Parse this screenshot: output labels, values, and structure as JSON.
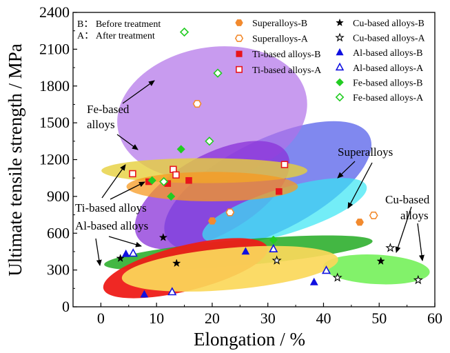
{
  "chart_data": {
    "type": "scatter",
    "xlabel": "Elongation / %",
    "ylabel": "Ultimate tensile strength / MPa",
    "xlim": [
      -5,
      60
    ],
    "ylim": [
      0,
      2400
    ],
    "xticks": [
      0,
      10,
      20,
      30,
      40,
      50,
      60
    ],
    "yticks": [
      0,
      300,
      600,
      900,
      1200,
      1500,
      1800,
      2100,
      2400
    ],
    "notes": [
      "B： Before treatment",
      "A： After treatment"
    ],
    "series": [
      {
        "name": "Superalloys-B",
        "marker": "hexagon",
        "filled": true,
        "color": "#f28a2e",
        "points": [
          [
            20,
            700
          ],
          [
            46.5,
            690
          ]
        ]
      },
      {
        "name": "Superalloys-A",
        "marker": "hexagon",
        "filled": false,
        "color": "#f28a2e",
        "points": [
          [
            17.3,
            1655
          ],
          [
            23.2,
            770
          ],
          [
            49,
            745
          ]
        ]
      },
      {
        "name": "Ti-based alloys-B",
        "marker": "square",
        "filled": true,
        "color": "#e8141b",
        "points": [
          [
            8.6,
            1020
          ],
          [
            12,
            1005
          ],
          [
            15.8,
            1030
          ],
          [
            32,
            940
          ]
        ]
      },
      {
        "name": "Ti-based alloys-A",
        "marker": "square",
        "filled": false,
        "color": "#e8141b",
        "points": [
          [
            5.7,
            1085
          ],
          [
            13,
            1120
          ],
          [
            13.5,
            1075
          ],
          [
            33,
            1160
          ]
        ]
      },
      {
        "name": "Cu-based alloys-B",
        "marker": "star",
        "filled": true,
        "color": "#000000",
        "points": [
          [
            3.5,
            395
          ],
          [
            11.2,
            565
          ],
          [
            13.6,
            355
          ],
          [
            50.3,
            372
          ]
        ]
      },
      {
        "name": "Cu-based alloys-A",
        "marker": "star",
        "filled": false,
        "color": "#000000",
        "points": [
          [
            31.6,
            378
          ],
          [
            42.5,
            238
          ],
          [
            52,
            480
          ],
          [
            57,
            218
          ]
        ]
      },
      {
        "name": "Al-based alloys-B",
        "marker": "triangle",
        "filled": true,
        "color": "#1010e0",
        "points": [
          [
            4.5,
            430
          ],
          [
            7.8,
            100
          ],
          [
            26,
            450
          ],
          [
            38.3,
            200
          ]
        ]
      },
      {
        "name": "Al-based alloys-A",
        "marker": "triangle",
        "filled": false,
        "color": "#1010e0",
        "points": [
          [
            5.8,
            435
          ],
          [
            12.8,
            120
          ],
          [
            31,
            470
          ],
          [
            40.5,
            295
          ]
        ]
      },
      {
        "name": "Fe-based alloys-B",
        "marker": "diamond",
        "filled": true,
        "color": "#22cc22",
        "points": [
          [
            9.2,
            1030
          ],
          [
            12.6,
            900
          ],
          [
            14.4,
            1285
          ],
          [
            31,
            545
          ]
        ]
      },
      {
        "name": "Fe-based alloys-A",
        "marker": "diamond",
        "filled": false,
        "color": "#22cc22",
        "points": [
          [
            11.3,
            1020
          ],
          [
            15,
            2240
          ],
          [
            19.5,
            1350
          ],
          [
            21,
            1905
          ]
        ]
      }
    ],
    "regions": [
      {
        "name": "Superalloys",
        "cx": 30,
        "cy": 980,
        "rx": 20.4,
        "ry": 375,
        "rotation": -26.6,
        "color": "#4a55e8",
        "opacity": 0.7
      },
      {
        "name": "Fe-based alloys",
        "cx": 20,
        "cy": 1580,
        "rx": 17.2,
        "ry": 535,
        "rotation": -10,
        "color": "#b070e8",
        "opacity": 0.7
      },
      {
        "name": "Fe-based alloys",
        "cx": 20,
        "cy": 910,
        "rx": 15.4,
        "ry": 325,
        "rotation": -29,
        "color": "#8a32d8",
        "opacity": 0.75
      },
      {
        "name": "Superalloys",
        "cx": 33,
        "cy": 780,
        "rx": 15.4,
        "ry": 185,
        "rotation": -17,
        "color": "#38e6f4",
        "opacity": 0.7
      },
      {
        "name": "Ti-based alloys",
        "cx": 18.6,
        "cy": 1110,
        "rx": 18.5,
        "ry": 102,
        "rotation": 0,
        "color": "#e6cf3c",
        "opacity": 0.8
      },
      {
        "name": "Ti-based alloys",
        "cx": 20,
        "cy": 980,
        "rx": 15.4,
        "ry": 120,
        "rotation": 0,
        "color": "#f79a22",
        "opacity": 0.75
      },
      {
        "name": "Cu-based alloys",
        "cx": 49.5,
        "cy": 305,
        "rx": 9.6,
        "ry": 120,
        "rotation": 3,
        "color": "#58ee38",
        "opacity": 0.75
      },
      {
        "name": "Cu-based alloys",
        "cx": 24.7,
        "cy": 440,
        "rx": 24.2,
        "ry": 105,
        "rotation": -5,
        "color": "#22aa22",
        "opacity": 0.85
      },
      {
        "name": "Al-based alloys",
        "cx": 15.2,
        "cy": 315,
        "rx": 15.2,
        "ry": 185,
        "rotation": -14,
        "color": "#ee1c18",
        "opacity": 0.95
      },
      {
        "name": "Al-based alloys",
        "cx": 23.2,
        "cy": 310,
        "rx": 19.5,
        "ry": 170,
        "rotation": -5,
        "color": "#fbd85a",
        "opacity": 0.92
      }
    ],
    "annotations": [
      {
        "text": "Fe-based",
        "text2": "alloys"
      },
      {
        "text": "Superalloys"
      },
      {
        "text": "Cu-based",
        "text2": "alloys"
      },
      {
        "text": "Ti-based alloys"
      },
      {
        "text": "Al-based alloys"
      }
    ]
  }
}
